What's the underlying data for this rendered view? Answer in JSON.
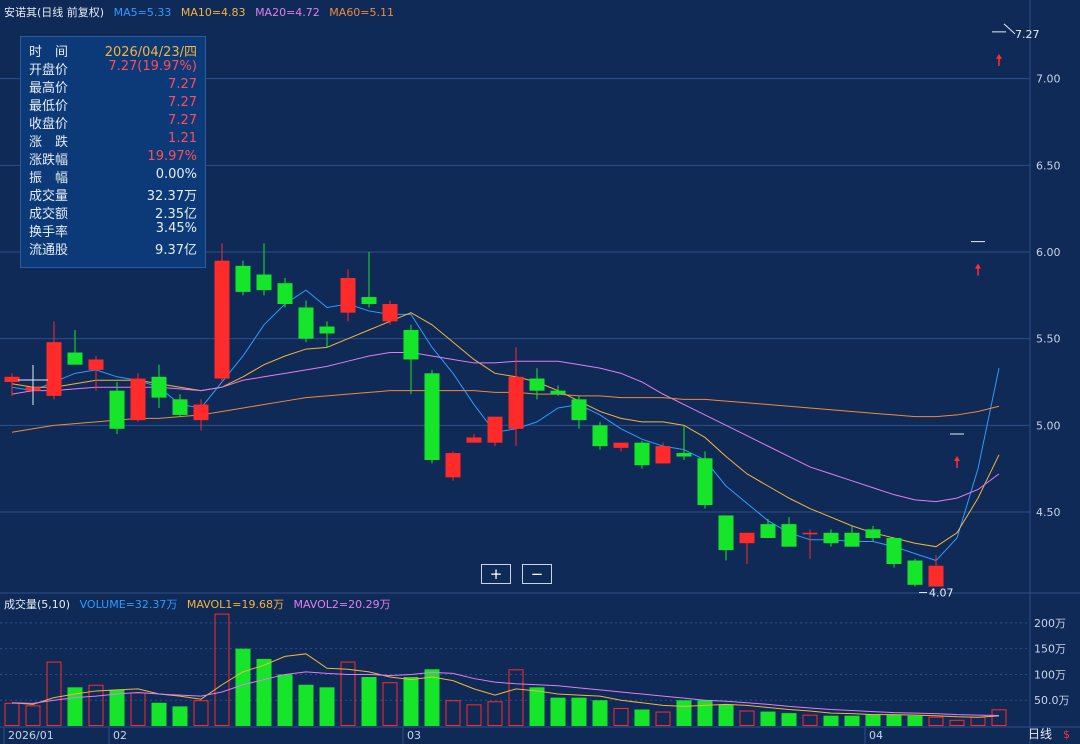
{
  "header": {
    "stock": "安诺其(日线 前复权)",
    "ma": [
      {
        "label": "MA5=5.33",
        "color": "#2f9bff"
      },
      {
        "label": "MA10=4.83",
        "color": "#f5b43c"
      },
      {
        "label": "MA20=4.72",
        "color": "#e07ef0"
      },
      {
        "label": "MA60=5.11",
        "color": "#f08a3a"
      }
    ]
  },
  "volume_header": {
    "title": "成交量(5,10)",
    "items": [
      {
        "label": "VOLUME=32.37万",
        "color": "#2f9bff"
      },
      {
        "label": "MAVOL1=19.68万",
        "color": "#f5b43c"
      },
      {
        "label": "MAVOL2=20.29万",
        "color": "#e07ef0"
      }
    ]
  },
  "info_panel": {
    "rows": [
      {
        "label": "时　间",
        "value": "2026/04/23/四",
        "color": "#f5b43c"
      },
      {
        "label": "开盘价",
        "value": "7.27(19.97%)",
        "color": "#ff4d5a"
      },
      {
        "label": "最高价",
        "value": "7.27",
        "color": "#ff4d5a"
      },
      {
        "label": "最低价",
        "value": "7.27",
        "color": "#ff4d5a"
      },
      {
        "label": "收盘价",
        "value": "7.27",
        "color": "#ff4d5a"
      },
      {
        "label": "涨　跌",
        "value": "1.21",
        "color": "#ff4d5a"
      },
      {
        "label": "涨跌幅",
        "value": "19.97%",
        "color": "#ff4d5a"
      },
      {
        "label": "振　幅",
        "value": "0.00%",
        "color": "#e6ecf5"
      },
      {
        "label": "成交量",
        "value": "32.37万",
        "color": "#e6ecf5"
      },
      {
        "label": "成交额",
        "value": "2.35亿",
        "color": "#e6ecf5"
      },
      {
        "label": "换手率",
        "value": "3.45%",
        "color": "#e6ecf5"
      },
      {
        "label": "流通股",
        "value": "9.37亿",
        "color": "#e6ecf5"
      }
    ]
  },
  "controls": {
    "zoom_in": "+",
    "zoom_out": "−"
  },
  "footer": {
    "period": "日线",
    "marker": "$"
  },
  "colors": {
    "up": "#ff2a2a",
    "down": "#15e62a",
    "grid": "#2c4f86",
    "axis_text": "#c8d3e6"
  },
  "chart_data": {
    "type": "candlestick",
    "price_axis": {
      "ticks": [
        4.5,
        5.0,
        5.5,
        6.0,
        6.5,
        7.0
      ],
      "tick_labels": [
        "4.50",
        "5.00",
        "5.50",
        "6.00",
        "6.50",
        "7.00"
      ],
      "range": [
        4.05,
        7.35
      ]
    },
    "volume_axis": {
      "ticks": [
        50,
        100,
        150,
        200
      ],
      "tick_labels": [
        "50.0万",
        "100万",
        "150万",
        "200万"
      ],
      "range": [
        0,
        225
      ]
    },
    "x_labels": [
      {
        "index": 0,
        "label": "2026/01"
      },
      {
        "index": 5,
        "label": "02"
      },
      {
        "index": 19,
        "label": "03"
      },
      {
        "index": 41,
        "label": "04"
      }
    ],
    "candles": [
      {
        "o": 5.25,
        "h": 5.3,
        "l": 5.17,
        "c": 5.28,
        "v": 45
      },
      {
        "o": 5.2,
        "h": 5.28,
        "l": 5.12,
        "c": 5.22,
        "v": 40
      },
      {
        "o": 5.17,
        "h": 5.6,
        "l": 5.15,
        "c": 5.48,
        "v": 125
      },
      {
        "o": 5.42,
        "h": 5.55,
        "l": 5.35,
        "c": 5.35,
        "v": 75
      },
      {
        "o": 5.32,
        "h": 5.4,
        "l": 5.2,
        "c": 5.38,
        "v": 80
      },
      {
        "o": 5.2,
        "h": 5.25,
        "l": 4.95,
        "c": 4.98,
        "v": 70
      },
      {
        "o": 5.03,
        "h": 5.3,
        "l": 5.02,
        "c": 5.27,
        "v": 65
      },
      {
        "o": 5.28,
        "h": 5.35,
        "l": 5.1,
        "c": 5.16,
        "v": 45
      },
      {
        "o": 5.15,
        "h": 5.18,
        "l": 5.05,
        "c": 5.06,
        "v": 38
      },
      {
        "o": 5.03,
        "h": 5.15,
        "l": 4.97,
        "c": 5.12,
        "v": 50
      },
      {
        "o": 5.27,
        "h": 6.05,
        "l": 5.25,
        "c": 5.95,
        "v": 218
      },
      {
        "o": 5.92,
        "h": 5.95,
        "l": 5.75,
        "c": 5.77,
        "v": 150
      },
      {
        "o": 5.87,
        "h": 6.05,
        "l": 5.75,
        "c": 5.78,
        "v": 130
      },
      {
        "o": 5.82,
        "h": 5.85,
        "l": 5.68,
        "c": 5.7,
        "v": 100
      },
      {
        "o": 5.68,
        "h": 5.72,
        "l": 5.48,
        "c": 5.5,
        "v": 80
      },
      {
        "o": 5.57,
        "h": 5.6,
        "l": 5.45,
        "c": 5.53,
        "v": 75
      },
      {
        "o": 5.65,
        "h": 5.9,
        "l": 5.6,
        "c": 5.85,
        "v": 125
      },
      {
        "o": 5.74,
        "h": 6.0,
        "l": 5.68,
        "c": 5.7,
        "v": 95
      },
      {
        "o": 5.6,
        "h": 5.72,
        "l": 5.58,
        "c": 5.7,
        "v": 85
      },
      {
        "o": 5.55,
        "h": 5.58,
        "l": 5.18,
        "c": 5.38,
        "v": 95
      },
      {
        "o": 5.3,
        "h": 5.32,
        "l": 4.78,
        "c": 4.8,
        "v": 110
      },
      {
        "o": 4.7,
        "h": 4.85,
        "l": 4.68,
        "c": 4.84,
        "v": 50
      },
      {
        "o": 4.9,
        "h": 4.95,
        "l": 4.9,
        "c": 4.93,
        "v": 42
      },
      {
        "o": 4.9,
        "h": 5.05,
        "l": 4.88,
        "c": 5.05,
        "v": 48
      },
      {
        "o": 4.98,
        "h": 5.45,
        "l": 4.88,
        "c": 5.28,
        "v": 110
      },
      {
        "o": 5.27,
        "h": 5.33,
        "l": 5.15,
        "c": 5.2,
        "v": 75
      },
      {
        "o": 5.2,
        "h": 5.23,
        "l": 5.17,
        "c": 5.18,
        "v": 55
      },
      {
        "o": 5.15,
        "h": 5.17,
        "l": 4.98,
        "c": 5.03,
        "v": 55
      },
      {
        "o": 5.0,
        "h": 5.02,
        "l": 4.86,
        "c": 4.88,
        "v": 50
      },
      {
        "o": 4.87,
        "h": 4.9,
        "l": 4.85,
        "c": 4.9,
        "v": 35
      },
      {
        "o": 4.9,
        "h": 4.91,
        "l": 4.75,
        "c": 4.77,
        "v": 32
      },
      {
        "o": 4.78,
        "h": 4.9,
        "l": 4.78,
        "c": 4.88,
        "v": 28
      },
      {
        "o": 4.84,
        "h": 5.0,
        "l": 4.8,
        "c": 4.82,
        "v": 50
      },
      {
        "o": 4.81,
        "h": 4.85,
        "l": 4.52,
        "c": 4.54,
        "v": 50
      },
      {
        "o": 4.48,
        "h": 4.48,
        "l": 4.22,
        "c": 4.28,
        "v": 42
      },
      {
        "o": 4.32,
        "h": 4.38,
        "l": 4.2,
        "c": 4.38,
        "v": 30
      },
      {
        "o": 4.43,
        "h": 4.46,
        "l": 4.35,
        "c": 4.35,
        "v": 28
      },
      {
        "o": 4.43,
        "h": 4.47,
        "l": 4.3,
        "c": 4.3,
        "v": 25
      },
      {
        "o": 4.38,
        "h": 4.4,
        "l": 4.23,
        "c": 4.38,
        "v": 22
      },
      {
        "o": 4.38,
        "h": 4.4,
        "l": 4.3,
        "c": 4.32,
        "v": 20
      },
      {
        "o": 4.38,
        "h": 4.42,
        "l": 4.3,
        "c": 4.3,
        "v": 20
      },
      {
        "o": 4.4,
        "h": 4.42,
        "l": 4.33,
        "c": 4.35,
        "v": 22
      },
      {
        "o": 4.35,
        "h": 4.35,
        "l": 4.18,
        "c": 4.2,
        "v": 22
      },
      {
        "o": 4.22,
        "h": 4.23,
        "l": 4.07,
        "c": 4.08,
        "v": 20
      },
      {
        "o": 4.07,
        "h": 4.25,
        "l": 4.07,
        "c": 4.19,
        "v": 18
      },
      {
        "o": 4.95,
        "h": 4.95,
        "l": 4.95,
        "c": 4.95,
        "v": 12
      },
      {
        "o": 6.06,
        "h": 6.06,
        "l": 6.06,
        "c": 6.06,
        "v": 18
      },
      {
        "o": 7.27,
        "h": 7.27,
        "l": 7.27,
        "c": 7.27,
        "v": 32.37
      }
    ],
    "ma_lines": [
      {
        "name": "MA5",
        "color": "#2f9bff",
        "values": [
          5.22,
          5.2,
          5.25,
          5.3,
          5.32,
          5.28,
          5.26,
          5.22,
          5.12,
          5.1,
          5.25,
          5.4,
          5.58,
          5.7,
          5.78,
          5.68,
          5.7,
          5.66,
          5.64,
          5.64,
          5.45,
          5.3,
          5.12,
          4.96,
          4.98,
          5.02,
          5.1,
          5.12,
          5.06,
          4.98,
          4.92,
          4.88,
          4.86,
          4.8,
          4.65,
          4.55,
          4.45,
          4.38,
          4.34,
          4.34,
          4.33,
          4.33,
          4.3,
          4.26,
          4.22,
          4.35,
          4.75,
          5.33
        ]
      },
      {
        "name": "MA10",
        "color": "#f5b43c",
        "values": [
          5.24,
          5.22,
          5.22,
          5.24,
          5.26,
          5.26,
          5.26,
          5.24,
          5.22,
          5.2,
          5.22,
          5.28,
          5.35,
          5.4,
          5.44,
          5.45,
          5.5,
          5.55,
          5.6,
          5.65,
          5.58,
          5.48,
          5.38,
          5.3,
          5.28,
          5.25,
          5.2,
          5.14,
          5.08,
          5.04,
          5.02,
          5.02,
          5.0,
          4.93,
          4.82,
          4.72,
          4.65,
          4.58,
          4.52,
          4.47,
          4.42,
          4.38,
          4.35,
          4.32,
          4.3,
          4.38,
          4.58,
          4.83
        ]
      },
      {
        "name": "MA20",
        "color": "#e07ef0",
        "values": [
          5.18,
          5.2,
          5.2,
          5.21,
          5.22,
          5.22,
          5.22,
          5.22,
          5.21,
          5.2,
          5.22,
          5.26,
          5.28,
          5.3,
          5.32,
          5.34,
          5.37,
          5.4,
          5.42,
          5.42,
          5.4,
          5.38,
          5.36,
          5.36,
          5.37,
          5.37,
          5.37,
          5.35,
          5.33,
          5.3,
          5.25,
          5.18,
          5.12,
          5.06,
          5.0,
          4.94,
          4.88,
          4.82,
          4.76,
          4.72,
          4.68,
          4.64,
          4.6,
          4.57,
          4.56,
          4.58,
          4.63,
          4.72
        ]
      },
      {
        "name": "MA60",
        "color": "#f08a3a",
        "values": [
          4.96,
          4.98,
          5.0,
          5.01,
          5.02,
          5.03,
          5.04,
          5.04,
          5.05,
          5.06,
          5.08,
          5.1,
          5.12,
          5.14,
          5.16,
          5.17,
          5.18,
          5.19,
          5.2,
          5.2,
          5.2,
          5.2,
          5.2,
          5.19,
          5.19,
          5.18,
          5.18,
          5.17,
          5.17,
          5.16,
          5.16,
          5.16,
          5.15,
          5.15,
          5.14,
          5.13,
          5.12,
          5.11,
          5.1,
          5.09,
          5.08,
          5.07,
          5.06,
          5.05,
          5.05,
          5.06,
          5.08,
          5.11
        ]
      }
    ],
    "vol_ma_lines": [
      {
        "name": "MAVOL1",
        "color": "#f5b43c",
        "values": [
          45,
          42,
          55,
          62,
          68,
          70,
          72,
          62,
          58,
          52,
          80,
          105,
          118,
          135,
          140,
          112,
          110,
          105,
          95,
          90,
          95,
          88,
          72,
          60,
          72,
          68,
          62,
          60,
          58,
          50,
          45,
          40,
          38,
          40,
          42,
          40,
          36,
          32,
          29,
          25,
          24,
          22,
          22,
          21,
          20,
          18,
          17,
          19.68
        ]
      },
      {
        "name": "MAVOL2",
        "color": "#e07ef0",
        "values": [
          45,
          44,
          50,
          55,
          58,
          62,
          65,
          62,
          60,
          58,
          66,
          80,
          90,
          100,
          105,
          102,
          100,
          100,
          98,
          100,
          104,
          102,
          92,
          85,
          82,
          80,
          78,
          74,
          70,
          66,
          62,
          58,
          54,
          50,
          48,
          45,
          42,
          38,
          35,
          32,
          30,
          28,
          26,
          25,
          24,
          22,
          21,
          20.29
        ]
      }
    ],
    "annotations": [
      {
        "label": "7.27",
        "index": 47,
        "price": 7.27
      },
      {
        "label": "4.07",
        "index": 43,
        "price": 4.07
      }
    ],
    "signals": [
      {
        "index": 45
      },
      {
        "index": 46
      },
      {
        "index": 47
      }
    ]
  }
}
